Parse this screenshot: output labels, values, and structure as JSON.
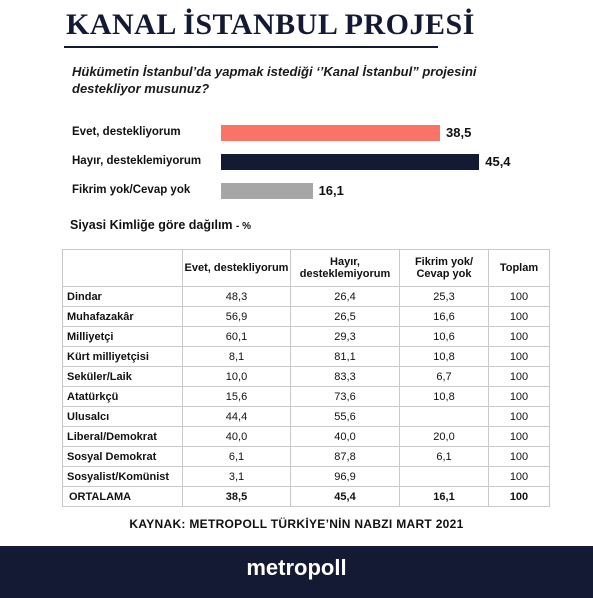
{
  "header": {
    "title": "KANAL İSTANBUL PROJESİ",
    "question": "Hükümetin İstanbul’da yapmak istediği ‘’Kanal İstanbul” projesini destekliyor musunuz?"
  },
  "colors": {
    "navy": "#141a33",
    "evet": "#f97466",
    "hayir": "#141a33",
    "fikrim": "#a6a6a6"
  },
  "chart_data": [
    {
      "type": "bar",
      "orientation": "horizontal",
      "categories": [
        "Evet, destekliyorum",
        "Hayır, desteklemiyorum",
        "Fikrim yok/Cevap  yok"
      ],
      "values": [
        38.5,
        45.4,
        16.1
      ],
      "value_labels": [
        "38,5",
        "45,4",
        "16,1"
      ],
      "colors": [
        "#f97466",
        "#141a33",
        "#a6a6a6"
      ],
      "title": "Hükümetin İstanbul’da yapmak istediği ‘’Kanal İstanbul” projesini destekliyor musunuz?",
      "xlabel": "",
      "ylabel": "",
      "xlim": [
        0,
        50
      ],
      "grid": false,
      "legend": "none"
    },
    {
      "type": "table",
      "title": "Siyasi Kimliğe göre dağılım",
      "unit": "- %",
      "columns": [
        "",
        "Evet, destekliyorum",
        "Hayır, desteklemiyorum",
        "Fikrim yok/ Cevap yok",
        "Toplam"
      ],
      "rows": [
        [
          "Dindar",
          "48,3",
          "26,4",
          "25,3",
          "100"
        ],
        [
          "Muhafazakâr",
          "56,9",
          "26,5",
          "16,6",
          "100"
        ],
        [
          "Milliyetçi",
          "60,1",
          "29,3",
          "10,6",
          "100"
        ],
        [
          "Kürt milliyetçisi",
          "8,1",
          "81,1",
          "10,8",
          "100"
        ],
        [
          "Seküler/Laik",
          "10,0",
          "83,3",
          "6,7",
          "100"
        ],
        [
          "Atatürkçü",
          "15,6",
          "73,6",
          "10,8",
          "100"
        ],
        [
          "Ulusalcı",
          "44,4",
          "55,6",
          "",
          "100"
        ],
        [
          "Liberal/Demokrat",
          "40,0",
          "40,0",
          "20,0",
          "100"
        ],
        [
          "Sosyal Demokrat",
          "6,1",
          "87,8",
          "6,1",
          "100"
        ],
        [
          "Sosyalist/Komünist",
          "3,1",
          "96,9",
          "",
          "100"
        ]
      ],
      "average": [
        "ORTALAMA",
        "38,5",
        "45,4",
        "16,1",
        "100"
      ]
    }
  ],
  "footer": {
    "source": "KAYNAK:  METROPOLL  TÜRKİYE’NİN NABZI  MART 2021",
    "brand": "metropoll"
  }
}
